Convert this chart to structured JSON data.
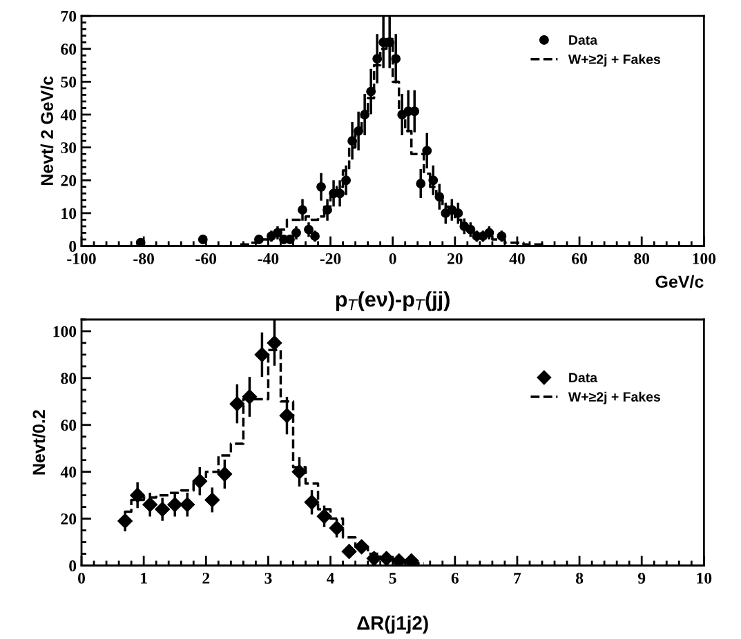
{
  "chart_data": [
    {
      "type": "scatter",
      "ylabel": "Nevt/ 2 GeV/c",
      "xlabel": "GeV/c",
      "annotations": [
        "p$_{T}$(eν)-p$_{T}$(jj)"
      ],
      "xlim": [
        -100,
        100
      ],
      "xticks": [
        -100,
        -80,
        -60,
        -40,
        -20,
        0,
        20,
        40,
        60,
        80,
        100
      ],
      "ylim": [
        0,
        70
      ],
      "yticks": [
        0,
        10,
        20,
        30,
        40,
        50,
        60,
        70
      ],
      "grid": false,
      "legend": "top right",
      "series": [
        {
          "name": "Data",
          "type": "scatter",
          "marker": "circle",
          "color": "#000000",
          "x": [
            -81,
            -61,
            -43,
            -39,
            -37,
            -35,
            -33,
            -31,
            -29,
            -27,
            -25,
            -23,
            -21,
            -19,
            -17,
            -15,
            -13,
            -11,
            -9,
            -7,
            -5,
            -3,
            -1,
            1,
            3,
            5,
            7,
            9,
            11,
            13,
            15,
            17,
            19,
            21,
            23,
            25,
            27,
            29,
            31,
            35
          ],
          "values": [
            1,
            2,
            2,
            3,
            4,
            2,
            2,
            4,
            11,
            5,
            3,
            18,
            11,
            16,
            16,
            20,
            32,
            35,
            40,
            47,
            57,
            62,
            62,
            57,
            40,
            41,
            41,
            19,
            29,
            20,
            15,
            10,
            11,
            10,
            6,
            5,
            3,
            3,
            4,
            3
          ],
          "errors": [
            1,
            1.4,
            1.4,
            1.7,
            2,
            1.4,
            1.4,
            2,
            3.3,
            2.2,
            1.7,
            4.2,
            3.3,
            4,
            4,
            4.5,
            5.7,
            5.9,
            6.3,
            6.9,
            7.5,
            7.9,
            7.9,
            7.5,
            6.3,
            6.4,
            6.4,
            4.4,
            5.4,
            4.5,
            3.9,
            3.2,
            3.3,
            3.2,
            2.4,
            2.2,
            1.7,
            1.7,
            2,
            1.7
          ]
        },
        {
          "name": "W+≥2j + Fakes",
          "type": "step",
          "line_style": "dashed",
          "color": "#000000",
          "x": [
            -49,
            -47,
            -45,
            -43,
            -41,
            -39,
            -37,
            -35,
            -33,
            -31,
            -29,
            -27,
            -25,
            -23,
            -21,
            -19,
            -17,
            -15,
            -13,
            -11,
            -9,
            -7,
            -5,
            -3,
            -1,
            1,
            3,
            5,
            7,
            9,
            11,
            13,
            15,
            17,
            19,
            21,
            23,
            25,
            27,
            29,
            31,
            33,
            35,
            37,
            39,
            41,
            43,
            45,
            47,
            49
          ],
          "values": [
            0.5,
            0.5,
            1,
            1,
            2,
            3,
            4,
            5,
            8,
            8,
            8,
            9,
            8,
            9,
            12,
            15,
            18,
            23,
            30,
            35,
            40,
            45,
            55,
            60,
            63,
            50,
            40,
            35,
            28,
            28,
            22,
            18,
            14,
            12,
            10,
            8,
            6,
            5,
            4,
            3,
            3,
            2,
            2,
            1,
            1,
            1,
            0.5,
            0.5,
            0.5,
            0.5
          ]
        }
      ]
    },
    {
      "type": "scatter",
      "ylabel": "Nevt/0.2",
      "xlabel": "ΔR(j1j2)",
      "xlim": [
        0,
        10
      ],
      "xticks": [
        0,
        1,
        2,
        3,
        4,
        5,
        6,
        7,
        8,
        9,
        10
      ],
      "ylim": [
        0,
        105
      ],
      "yticks": [
        0,
        20,
        40,
        60,
        80,
        100
      ],
      "grid": false,
      "legend": "right",
      "series": [
        {
          "name": "Data",
          "type": "scatter",
          "marker": "diamond",
          "color": "#000000",
          "x": [
            0.7,
            0.9,
            1.1,
            1.3,
            1.5,
            1.7,
            1.9,
            2.1,
            2.3,
            2.5,
            2.7,
            2.9,
            3.1,
            3.3,
            3.5,
            3.7,
            3.9,
            4.1,
            4.3,
            4.5,
            4.7,
            4.9,
            5.1,
            5.3
          ],
          "values": [
            19,
            30,
            26,
            24,
            26,
            26,
            36,
            28,
            39,
            69,
            72,
            90,
            95,
            64,
            40,
            27,
            21,
            16,
            6,
            8,
            3,
            3,
            2,
            2
          ],
          "errors": [
            4.4,
            5.5,
            5.1,
            4.9,
            5.1,
            5.1,
            6,
            5.3,
            6.2,
            8.3,
            8.5,
            9.5,
            9.7,
            8,
            6.3,
            5.2,
            4.6,
            4,
            2.4,
            2.8,
            1.7,
            1.7,
            1.4,
            1.4
          ]
        },
        {
          "name": "W+≥2j + Fakes",
          "type": "step",
          "line_style": "dashed",
          "color": "#000000",
          "x": [
            0.7,
            0.9,
            1.1,
            1.3,
            1.5,
            1.7,
            1.9,
            2.1,
            2.3,
            2.5,
            2.7,
            2.9,
            3.1,
            3.3,
            3.5,
            3.7,
            3.9,
            4.1,
            4.3,
            4.5,
            4.7,
            4.9,
            5.1,
            5.3,
            5.5
          ],
          "values": [
            23,
            28,
            29,
            30,
            31,
            32,
            36,
            40,
            47,
            52,
            71,
            71,
            92,
            70,
            42,
            35,
            24,
            20,
            12,
            8,
            5,
            3,
            2,
            1,
            1
          ]
        }
      ]
    }
  ]
}
